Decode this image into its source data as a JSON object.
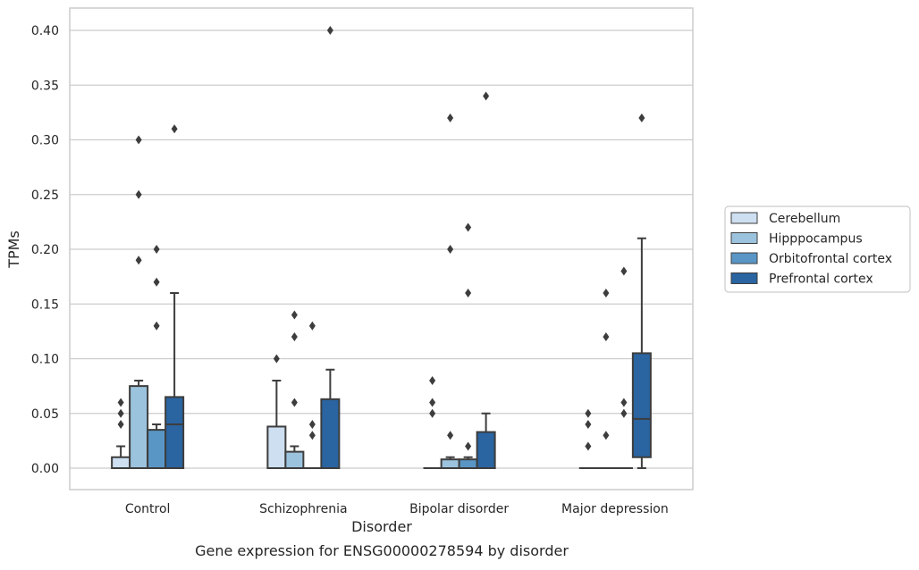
{
  "chart_data": {
    "type": "boxplot",
    "title": "Gene expression for ENSG00000278594 by disorder",
    "xlabel": "Disorder",
    "ylabel": "TPMs",
    "ylim": [
      -0.02,
      0.42
    ],
    "yticks": [
      "0.00",
      "0.05",
      "0.10",
      "0.15",
      "0.20",
      "0.25",
      "0.30",
      "0.35",
      "0.40"
    ],
    "grid": true,
    "legend_placement": "right",
    "categories": [
      "Control",
      "Schizophrenia",
      "Bipolar disorder",
      "Major depression"
    ],
    "series": [
      {
        "name": "Cerebellum",
        "color": "#cddff0",
        "boxes": [
          {
            "q1": 0.0,
            "median": 0.0,
            "q3": 0.01,
            "whisker_low": 0.0,
            "whisker_high": 0.02,
            "outliers": [
              0.04,
              0.05,
              0.06
            ]
          },
          {
            "q1": 0.0,
            "median": 0.0,
            "q3": 0.038,
            "whisker_low": 0.0,
            "whisker_high": 0.08,
            "outliers": [
              0.1
            ]
          },
          {
            "q1": 0.0,
            "median": 0.0,
            "q3": 0.0,
            "whisker_low": 0.0,
            "whisker_high": 0.0,
            "outliers": [
              0.05,
              0.06,
              0.08
            ]
          },
          {
            "q1": 0.0,
            "median": 0.0,
            "q3": 0.0,
            "whisker_low": 0.0,
            "whisker_high": 0.0,
            "outliers": [
              0.02,
              0.04,
              0.05
            ]
          }
        ]
      },
      {
        "name": "Hipppocampus",
        "color": "#9cc3dd",
        "boxes": [
          {
            "q1": 0.0,
            "median": 0.0,
            "q3": 0.075,
            "whisker_low": 0.0,
            "whisker_high": 0.08,
            "outliers": [
              0.19,
              0.25,
              0.3
            ]
          },
          {
            "q1": 0.0,
            "median": 0.0,
            "q3": 0.015,
            "whisker_low": 0.0,
            "whisker_high": 0.02,
            "outliers": [
              0.06,
              0.12,
              0.14
            ]
          },
          {
            "q1": 0.0,
            "median": 0.0,
            "q3": 0.008,
            "whisker_low": 0.0,
            "whisker_high": 0.01,
            "outliers": [
              0.03,
              0.2,
              0.32
            ]
          },
          {
            "q1": 0.0,
            "median": 0.0,
            "q3": 0.0,
            "whisker_low": 0.0,
            "whisker_high": 0.0,
            "outliers": [
              0.03,
              0.12,
              0.16
            ]
          }
        ]
      },
      {
        "name": "Orbitofrontal cortex",
        "color": "#5996c6",
        "boxes": [
          {
            "q1": 0.0,
            "median": 0.0,
            "q3": 0.035,
            "whisker_low": 0.0,
            "whisker_high": 0.04,
            "outliers": [
              0.13,
              0.17,
              0.2
            ]
          },
          {
            "q1": 0.0,
            "median": 0.0,
            "q3": 0.0,
            "whisker_low": 0.0,
            "whisker_high": 0.0,
            "outliers": [
              0.03,
              0.04,
              0.13
            ]
          },
          {
            "q1": 0.0,
            "median": 0.0,
            "q3": 0.008,
            "whisker_low": 0.0,
            "whisker_high": 0.01,
            "outliers": [
              0.02,
              0.16,
              0.22
            ]
          },
          {
            "q1": 0.0,
            "median": 0.0,
            "q3": 0.0,
            "whisker_low": 0.0,
            "whisker_high": 0.0,
            "outliers": [
              0.05,
              0.06,
              0.18
            ]
          }
        ]
      },
      {
        "name": "Prefrontal cortex",
        "color": "#2a64a1",
        "boxes": [
          {
            "q1": 0.0,
            "median": 0.04,
            "q3": 0.065,
            "whisker_low": 0.0,
            "whisker_high": 0.16,
            "outliers": [
              0.31
            ]
          },
          {
            "q1": 0.0,
            "median": 0.0,
            "q3": 0.063,
            "whisker_low": 0.0,
            "whisker_high": 0.09,
            "outliers": [
              0.4
            ]
          },
          {
            "q1": 0.0,
            "median": 0.0,
            "q3": 0.033,
            "whisker_low": 0.0,
            "whisker_high": 0.05,
            "outliers": [
              0.34
            ]
          },
          {
            "q1": 0.01,
            "median": 0.045,
            "q3": 0.105,
            "whisker_low": 0.0,
            "whisker_high": 0.21,
            "outliers": [
              0.32
            ]
          }
        ]
      }
    ]
  }
}
